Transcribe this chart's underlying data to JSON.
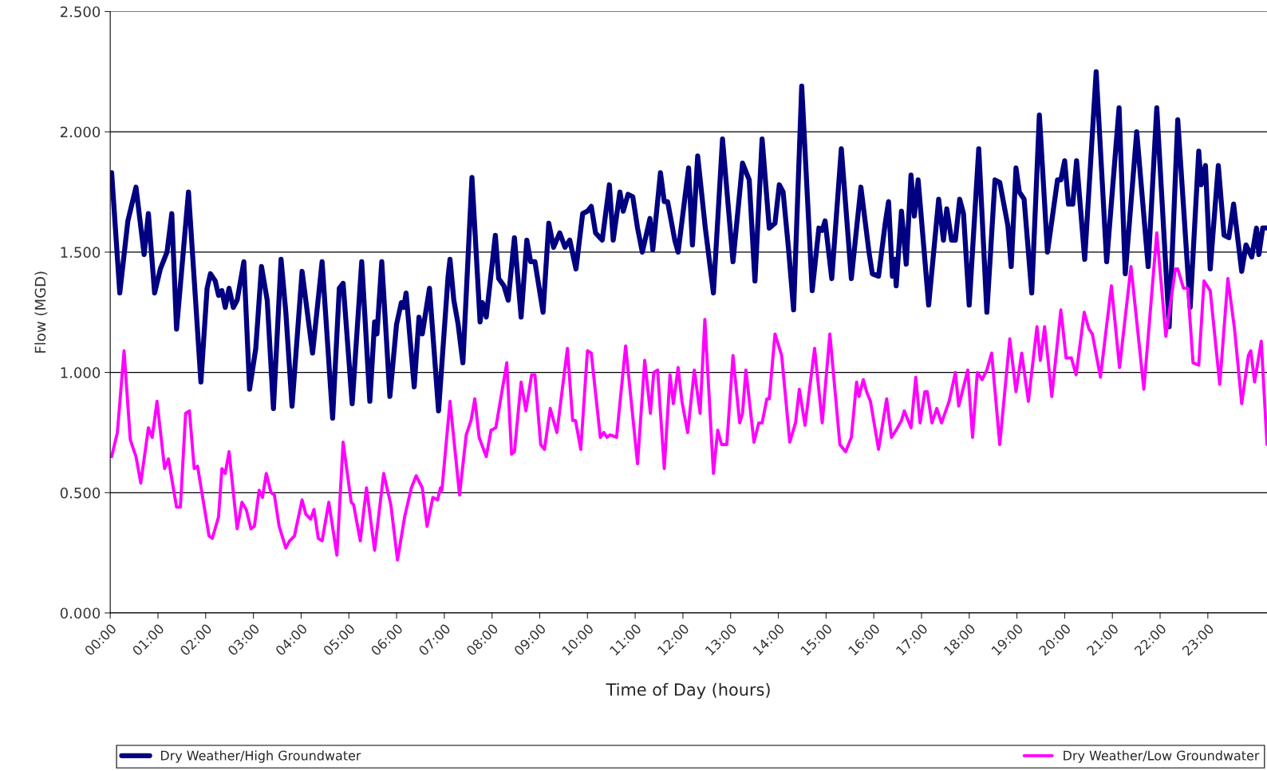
{
  "chart_data": {
    "type": "line",
    "xlabel": "Time of Day (hours)",
    "ylabel": "Flow (MGD)",
    "xlim": [
      0,
      24.24
    ],
    "xticks": [
      {
        "value": 0,
        "label": "00:00"
      },
      {
        "value": 1,
        "label": "01:00"
      },
      {
        "value": 2,
        "label": "02:00"
      },
      {
        "value": 3,
        "label": "03:00"
      },
      {
        "value": 4,
        "label": "04:00"
      },
      {
        "value": 5,
        "label": "05:00"
      },
      {
        "value": 6,
        "label": "06:00"
      },
      {
        "value": 7,
        "label": "07:00"
      },
      {
        "value": 8,
        "label": "08:00"
      },
      {
        "value": 9,
        "label": "09:00"
      },
      {
        "value": 10,
        "label": "10:00"
      },
      {
        "value": 11,
        "label": "11:00"
      },
      {
        "value": 12,
        "label": "12:00"
      },
      {
        "value": 13,
        "label": "13:00"
      },
      {
        "value": 14,
        "label": "14:00"
      },
      {
        "value": 15,
        "label": "15:00"
      },
      {
        "value": 16,
        "label": "16:00"
      },
      {
        "value": 17,
        "label": "17:00"
      },
      {
        "value": 18,
        "label": "18:00"
      },
      {
        "value": 19,
        "label": "19:00"
      },
      {
        "value": 20,
        "label": "20:00"
      },
      {
        "value": 21,
        "label": "21:00"
      },
      {
        "value": 22,
        "label": "22:00"
      },
      {
        "value": 23,
        "label": "23:00"
      }
    ],
    "ylim": [
      0,
      2.5
    ],
    "yticks": [
      {
        "value": 0,
        "label": "0.000"
      },
      {
        "value": 0.5,
        "label": "0.500"
      },
      {
        "value": 1,
        "label": "1.000"
      },
      {
        "value": 1.5,
        "label": "1.500"
      },
      {
        "value": 2,
        "label": "2.000"
      },
      {
        "value": 2.5,
        "label": "2.500"
      }
    ],
    "grid": "y",
    "legend": "bottom",
    "line_style": "solid",
    "marker": "none",
    "series": [
      {
        "name": "Dry Weather/High Groundwater",
        "color": "#000080",
        "x": [
          0.03,
          0.2,
          0.37,
          0.54,
          0.71,
          0.8,
          0.93,
          1.05,
          1.19,
          1.29,
          1.39,
          1.64,
          1.9,
          2.03,
          2.1,
          2.2,
          2.27,
          2.34,
          2.41,
          2.49,
          2.58,
          2.66,
          2.8,
          2.92,
          3.05,
          3.17,
          3.29,
          3.42,
          3.58,
          3.68,
          3.81,
          4.02,
          4.24,
          4.44,
          4.66,
          4.8,
          4.88,
          5.07,
          5.27,
          5.44,
          5.54,
          5.59,
          5.69,
          5.86,
          6.0,
          6.1,
          6.15,
          6.2,
          6.37,
          6.47,
          6.54,
          6.69,
          6.88,
          7.08,
          7.12,
          7.2,
          7.29,
          7.39,
          7.58,
          7.75,
          7.8,
          7.88,
          8.07,
          8.14,
          8.25,
          8.34,
          8.47,
          8.61,
          8.73,
          8.81,
          8.9,
          9.07,
          9.19,
          9.29,
          9.42,
          9.53,
          9.63,
          9.76,
          9.9,
          10.0,
          10.08,
          10.17,
          10.31,
          10.46,
          10.54,
          10.68,
          10.75,
          10.85,
          10.95,
          11.05,
          11.15,
          11.31,
          11.37,
          11.53,
          11.61,
          11.68,
          11.83,
          11.9,
          12.12,
          12.2,
          12.31,
          12.47,
          12.64,
          12.83,
          13.05,
          13.25,
          13.39,
          13.51,
          13.66,
          13.81,
          13.93,
          14.02,
          14.1,
          14.22,
          14.32,
          14.49,
          14.71,
          14.85,
          14.92,
          14.98,
          15.12,
          15.32,
          15.53,
          15.73,
          15.9,
          15.97,
          16.1,
          16.24,
          16.31,
          16.39,
          16.44,
          16.47,
          16.58,
          16.68,
          16.78,
          16.85,
          16.93,
          17.15,
          17.36,
          17.46,
          17.53,
          17.63,
          17.71,
          17.8,
          17.88,
          18.0,
          18.2,
          18.37,
          18.54,
          18.64,
          18.81,
          18.88,
          18.98,
          19.05,
          19.15,
          19.31,
          19.47,
          19.64,
          19.85,
          19.92,
          20.0,
          20.08,
          20.17,
          20.25,
          20.42,
          20.66,
          20.88,
          21.14,
          21.27,
          21.51,
          21.75,
          21.93,
          22.19,
          22.37,
          22.63,
          22.81,
          22.86,
          22.95,
          23.05,
          23.22,
          23.34,
          23.44,
          23.54,
          23.71,
          23.8,
          23.92,
          24.02,
          24.07,
          24.15,
          24.24
        ],
        "values": [
          1.83,
          1.33,
          1.63,
          1.77,
          1.49,
          1.66,
          1.33,
          1.43,
          1.5,
          1.66,
          1.18,
          1.75,
          0.96,
          1.35,
          1.41,
          1.38,
          1.32,
          1.34,
          1.27,
          1.35,
          1.27,
          1.3,
          1.46,
          0.93,
          1.1,
          1.44,
          1.3,
          0.85,
          1.47,
          1.25,
          0.86,
          1.42,
          1.08,
          1.46,
          0.81,
          1.35,
          1.37,
          0.87,
          1.46,
          0.88,
          1.21,
          1.16,
          1.46,
          0.9,
          1.2,
          1.29,
          1.27,
          1.33,
          0.94,
          1.23,
          1.16,
          1.35,
          0.84,
          1.4,
          1.47,
          1.3,
          1.2,
          1.04,
          1.81,
          1.21,
          1.29,
          1.23,
          1.57,
          1.39,
          1.36,
          1.3,
          1.56,
          1.23,
          1.55,
          1.46,
          1.46,
          1.25,
          1.62,
          1.52,
          1.58,
          1.52,
          1.55,
          1.43,
          1.66,
          1.67,
          1.69,
          1.58,
          1.55,
          1.78,
          1.55,
          1.75,
          1.67,
          1.74,
          1.73,
          1.6,
          1.5,
          1.64,
          1.51,
          1.83,
          1.71,
          1.71,
          1.55,
          1.5,
          1.85,
          1.53,
          1.9,
          1.6,
          1.33,
          1.97,
          1.46,
          1.87,
          1.8,
          1.38,
          1.97,
          1.6,
          1.62,
          1.78,
          1.75,
          1.5,
          1.26,
          2.19,
          1.34,
          1.6,
          1.59,
          1.63,
          1.39,
          1.93,
          1.39,
          1.77,
          1.5,
          1.41,
          1.4,
          1.62,
          1.71,
          1.4,
          1.47,
          1.36,
          1.67,
          1.45,
          1.82,
          1.65,
          1.8,
          1.28,
          1.72,
          1.55,
          1.68,
          1.55,
          1.55,
          1.72,
          1.66,
          1.28,
          1.93,
          1.25,
          1.8,
          1.79,
          1.61,
          1.44,
          1.85,
          1.75,
          1.72,
          1.33,
          2.07,
          1.5,
          1.8,
          1.8,
          1.88,
          1.7,
          1.7,
          1.88,
          1.47,
          2.25,
          1.46,
          2.1,
          1.41,
          2.0,
          1.44,
          2.1,
          1.19,
          2.05,
          1.27,
          1.92,
          1.78,
          1.86,
          1.43,
          1.86,
          1.57,
          1.56,
          1.7,
          1.42,
          1.53,
          1.48,
          1.6,
          1.49,
          1.6,
          1.6
        ]
      },
      {
        "name": "Dry Weather/Low Groundwater",
        "color": "#ff00ff",
        "x": [
          0.03,
          0.15,
          0.29,
          0.42,
          0.54,
          0.64,
          0.8,
          0.88,
          0.98,
          1.14,
          1.22,
          1.39,
          1.47,
          1.58,
          1.66,
          1.76,
          1.83,
          2.07,
          2.14,
          2.27,
          2.34,
          2.41,
          2.49,
          2.66,
          2.76,
          2.85,
          2.95,
          3.02,
          3.12,
          3.19,
          3.27,
          3.37,
          3.44,
          3.54,
          3.68,
          3.76,
          3.86,
          4.02,
          4.1,
          4.2,
          4.27,
          4.36,
          4.44,
          4.58,
          4.75,
          4.88,
          5.05,
          5.1,
          5.24,
          5.37,
          5.54,
          5.73,
          5.88,
          6.02,
          6.17,
          6.31,
          6.41,
          6.54,
          6.64,
          6.76,
          6.86,
          6.92,
          6.95,
          7.12,
          7.32,
          7.46,
          7.56,
          7.64,
          7.73,
          7.88,
          7.98,
          8.08,
          8.31,
          8.41,
          8.47,
          8.61,
          8.71,
          8.83,
          8.9,
          9.02,
          9.1,
          9.22,
          9.36,
          9.58,
          9.69,
          9.75,
          9.86,
          10.0,
          10.08,
          10.27,
          10.34,
          10.41,
          10.47,
          10.61,
          10.8,
          11.05,
          11.2,
          11.32,
          11.39,
          11.47,
          11.61,
          11.73,
          11.8,
          11.9,
          11.98,
          12.1,
          12.24,
          12.36,
          12.46,
          12.64,
          12.73,
          12.81,
          12.92,
          13.05,
          13.19,
          13.25,
          13.32,
          13.49,
          13.59,
          13.66,
          13.76,
          13.81,
          13.93,
          14.07,
          14.24,
          14.36,
          14.44,
          14.56,
          14.76,
          14.92,
          15.08,
          15.29,
          15.41,
          15.53,
          15.64,
          15.69,
          15.78,
          15.85,
          15.93,
          16.1,
          16.27,
          16.37,
          16.47,
          16.58,
          16.64,
          16.78,
          16.88,
          16.97,
          17.07,
          17.12,
          17.22,
          17.32,
          17.42,
          17.58,
          17.71,
          17.78,
          17.97,
          18.07,
          18.17,
          18.27,
          18.37,
          18.47,
          18.64,
          18.85,
          18.98,
          19.1,
          19.24,
          19.42,
          19.49,
          19.58,
          19.73,
          19.92,
          20.03,
          20.14,
          20.24,
          20.41,
          20.51,
          20.58,
          20.75,
          20.98,
          21.15,
          21.39,
          21.66,
          21.93,
          22.12,
          22.32,
          22.37,
          22.49,
          22.58,
          22.69,
          22.81,
          22.92,
          23.05,
          23.25,
          23.42,
          23.56,
          23.71,
          23.85,
          23.9,
          23.98,
          24.12,
          24.24
        ],
        "values": [
          0.65,
          0.75,
          1.09,
          0.72,
          0.65,
          0.54,
          0.77,
          0.73,
          0.88,
          0.6,
          0.64,
          0.44,
          0.44,
          0.83,
          0.84,
          0.6,
          0.61,
          0.32,
          0.31,
          0.4,
          0.6,
          0.58,
          0.67,
          0.35,
          0.46,
          0.43,
          0.35,
          0.36,
          0.51,
          0.48,
          0.58,
          0.5,
          0.49,
          0.36,
          0.27,
          0.3,
          0.32,
          0.47,
          0.41,
          0.39,
          0.43,
          0.31,
          0.3,
          0.46,
          0.24,
          0.71,
          0.46,
          0.45,
          0.3,
          0.52,
          0.26,
          0.58,
          0.45,
          0.22,
          0.4,
          0.52,
          0.57,
          0.52,
          0.36,
          0.48,
          0.47,
          0.52,
          0.51,
          0.88,
          0.49,
          0.74,
          0.8,
          0.89,
          0.73,
          0.65,
          0.76,
          0.77,
          1.04,
          0.66,
          0.67,
          0.96,
          0.84,
          0.99,
          0.99,
          0.7,
          0.68,
          0.85,
          0.75,
          1.1,
          0.8,
          0.8,
          0.68,
          1.09,
          1.08,
          0.73,
          0.75,
          0.73,
          0.74,
          0.73,
          1.11,
          0.62,
          1.05,
          0.83,
          1.0,
          1.01,
          0.6,
          0.99,
          0.87,
          1.02,
          0.88,
          0.75,
          1.01,
          0.83,
          1.22,
          0.58,
          0.76,
          0.7,
          0.7,
          1.07,
          0.79,
          0.83,
          1.01,
          0.71,
          0.79,
          0.79,
          0.89,
          0.89,
          1.16,
          1.07,
          0.71,
          0.79,
          0.93,
          0.78,
          1.1,
          0.79,
          1.16,
          0.7,
          0.67,
          0.73,
          0.96,
          0.9,
          0.97,
          0.92,
          0.88,
          0.68,
          0.89,
          0.73,
          0.76,
          0.8,
          0.84,
          0.77,
          0.98,
          0.79,
          0.92,
          0.92,
          0.79,
          0.85,
          0.79,
          0.88,
          1.0,
          0.86,
          1.01,
          0.73,
          1.0,
          0.97,
          1.01,
          1.08,
          0.7,
          1.14,
          0.92,
          1.08,
          0.88,
          1.19,
          1.05,
          1.19,
          0.9,
          1.26,
          1.06,
          1.06,
          0.99,
          1.25,
          1.18,
          1.16,
          0.98,
          1.36,
          1.02,
          1.44,
          0.93,
          1.58,
          1.15,
          1.43,
          1.43,
          1.35,
          1.35,
          1.04,
          1.03,
          1.38,
          1.34,
          0.95,
          1.39,
          1.18,
          0.87,
          1.07,
          1.09,
          0.96,
          1.13,
          0.7
        ]
      }
    ]
  }
}
